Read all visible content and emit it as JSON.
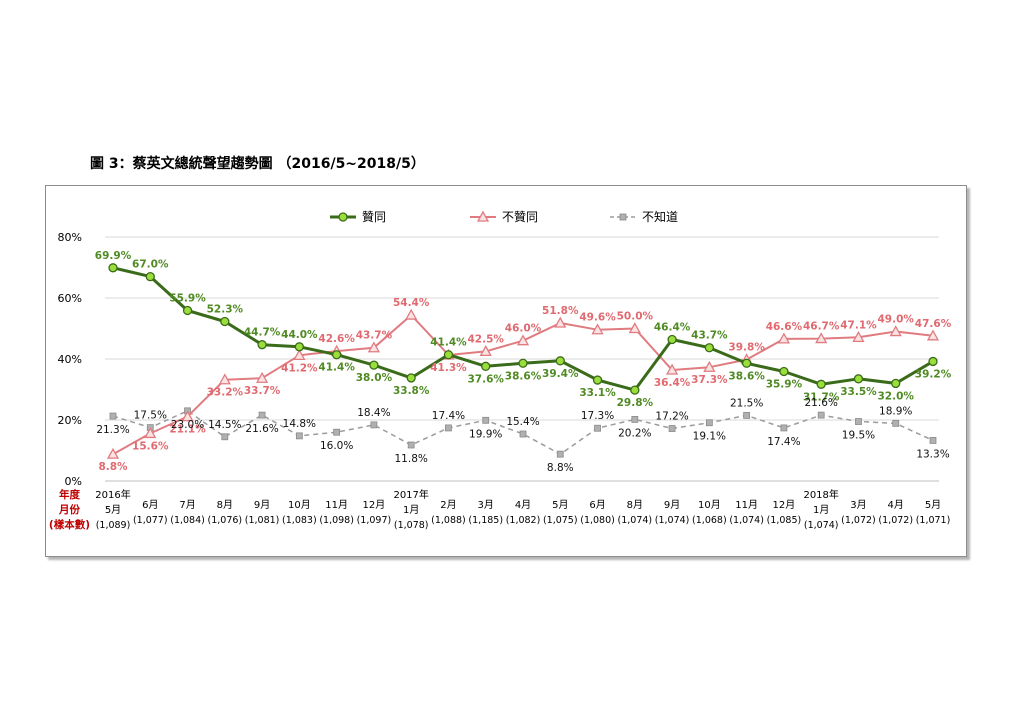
{
  "figure_title": "圖 3：蔡英文總統聲望趨勢圖 （2016/5~2018/5）",
  "row_labels": [
    "年度",
    "月份",
    "(樣本數)"
  ],
  "colors": {
    "approve": "#3a6b1a",
    "approve_marker": "#9ade3c",
    "disapprove": "#e07b80",
    "dontknow": "#9b9b9b"
  },
  "chart_data": {
    "type": "line",
    "title": "圖 3：蔡英文總統聲望趨勢圖 （2016/5~2018/5）",
    "y_ticks": [
      "0%",
      "20%",
      "40%",
      "60%",
      "80%"
    ],
    "ylim": [
      0,
      80
    ],
    "grid": true,
    "legend_position": "top",
    "x": [
      {
        "year": "2016年",
        "month": "5月",
        "n": "(1,089)"
      },
      {
        "year": "",
        "month": "6月",
        "n": "(1,077)"
      },
      {
        "year": "",
        "month": "7月",
        "n": "(1,084)"
      },
      {
        "year": "",
        "month": "8月",
        "n": "(1,076)"
      },
      {
        "year": "",
        "month": "9月",
        "n": "(1,081)"
      },
      {
        "year": "",
        "month": "10月",
        "n": "(1,083)"
      },
      {
        "year": "",
        "month": "11月",
        "n": "(1,098)"
      },
      {
        "year": "",
        "month": "12月",
        "n": "(1,097)"
      },
      {
        "year": "2017年",
        "month": "1月",
        "n": "(1,078)"
      },
      {
        "year": "",
        "month": "2月",
        "n": "(1,088)"
      },
      {
        "year": "",
        "month": "3月",
        "n": "(1,185)"
      },
      {
        "year": "",
        "month": "4月",
        "n": "(1,082)"
      },
      {
        "year": "",
        "month": "5月",
        "n": "(1,075)"
      },
      {
        "year": "",
        "month": "6月",
        "n": "(1,080)"
      },
      {
        "year": "",
        "month": "8月",
        "n": "(1,074)"
      },
      {
        "year": "",
        "month": "9月",
        "n": "(1,074)"
      },
      {
        "year": "",
        "month": "10月",
        "n": "(1,068)"
      },
      {
        "year": "",
        "month": "11月",
        "n": "(1,074)"
      },
      {
        "year": "",
        "month": "12月",
        "n": "(1,085)"
      },
      {
        "year": "2018年",
        "month": "1月",
        "n": "(1,074)"
      },
      {
        "year": "",
        "month": "3月",
        "n": "(1,072)"
      },
      {
        "year": "",
        "month": "4月",
        "n": "(1,072)"
      },
      {
        "year": "",
        "month": "5月",
        "n": "(1,071)"
      }
    ],
    "series": [
      {
        "key": "approve",
        "name": "贊同",
        "values": [
          69.9,
          67.0,
          55.9,
          52.3,
          44.7,
          44.0,
          41.4,
          38.0,
          33.8,
          41.4,
          37.6,
          38.6,
          39.4,
          33.1,
          29.8,
          46.4,
          43.7,
          38.6,
          35.9,
          31.7,
          33.5,
          32.0,
          39.2
        ],
        "labels": [
          "69.9%",
          "67.0%",
          "55.9%",
          "52.3%",
          "44.7%",
          "44.0%",
          "41.4%",
          "38.0%",
          "33.8%",
          "41.4%",
          "37.6%",
          "38.6%",
          "39.4%",
          "33.1%",
          "29.8%",
          "46.4%",
          "43.7%",
          "38.6%",
          "35.9%",
          "31.7%",
          "33.5%",
          "32.0%",
          "39.2%"
        ]
      },
      {
        "key": "disapprove",
        "name": "不贊同",
        "values": [
          8.8,
          15.6,
          21.1,
          33.2,
          33.7,
          41.2,
          42.6,
          43.7,
          54.4,
          41.3,
          42.5,
          46.0,
          51.8,
          49.6,
          50.0,
          36.4,
          37.3,
          39.8,
          46.6,
          46.7,
          47.1,
          49.0,
          47.6
        ],
        "labels": [
          "8.8%",
          "15.6%",
          "21.1%",
          "33.2%",
          "33.7%",
          "41.2%",
          "42.6%",
          "43.7%",
          "54.4%",
          "41.3%",
          "42.5%",
          "46.0%",
          "51.8%",
          "49.6%",
          "50.0%",
          "36.4%",
          "37.3%",
          "39.8%",
          "46.6%",
          "46.7%",
          "47.1%",
          "49.0%",
          "47.6%"
        ]
      },
      {
        "key": "dontknow",
        "name": "不知道",
        "values": [
          21.3,
          17.5,
          23.0,
          14.5,
          21.6,
          14.8,
          16.0,
          18.4,
          11.8,
          17.4,
          19.9,
          15.4,
          8.8,
          17.3,
          20.2,
          17.2,
          19.1,
          21.5,
          17.4,
          21.6,
          19.5,
          18.9,
          13.3
        ],
        "labels": [
          "21.3%",
          "17.5%",
          "23.0%",
          "14.5%",
          "21.6%",
          "14.8%",
          "16.0%",
          "18.4%",
          "11.8%",
          "17.4%",
          "19.9%",
          "15.4%",
          "8.8%",
          "17.3%",
          "20.2%",
          "17.2%",
          "19.1%",
          "21.5%",
          "17.4%",
          "21.6%",
          "19.5%",
          "18.9%",
          "13.3%"
        ]
      }
    ]
  }
}
